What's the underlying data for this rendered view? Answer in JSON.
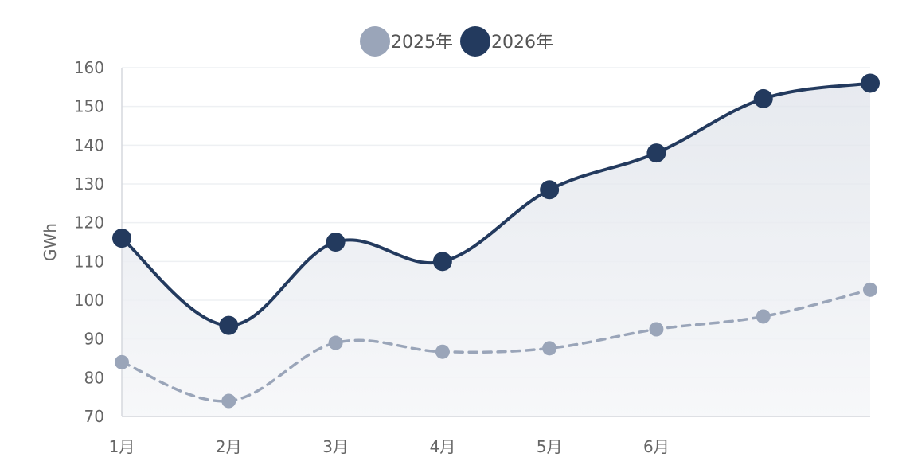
{
  "chart_data": {
    "type": "line",
    "categories": [
      "1月",
      "2月",
      "3月",
      "4月",
      "5月",
      "6月",
      "",
      ""
    ],
    "series": [
      {
        "name": "2025年",
        "values": [
          84,
          74,
          89,
          86.7,
          87.6,
          92.5,
          95.8,
          102.7
        ],
        "color": "#9aa5b9",
        "dashed": true,
        "fill": false
      },
      {
        "name": "2026年",
        "values": [
          116,
          93.5,
          115,
          110,
          128.5,
          138,
          152,
          156
        ],
        "color": "#233a5e",
        "dashed": false,
        "fill": true
      }
    ],
    "title": "",
    "xlabel": "",
    "ylabel": "GWh",
    "ylim": [
      70,
      160
    ],
    "yticks": [
      70,
      80,
      90,
      100,
      110,
      120,
      130,
      140,
      150,
      160
    ],
    "grid": true,
    "legend_position": "top-center",
    "smooth": true
  },
  "colors": {
    "grid": "#eef0f3",
    "axis": "#d5d8de",
    "fill_top": "#dfe3ea",
    "fill_bottom": "#f6f7f9"
  }
}
